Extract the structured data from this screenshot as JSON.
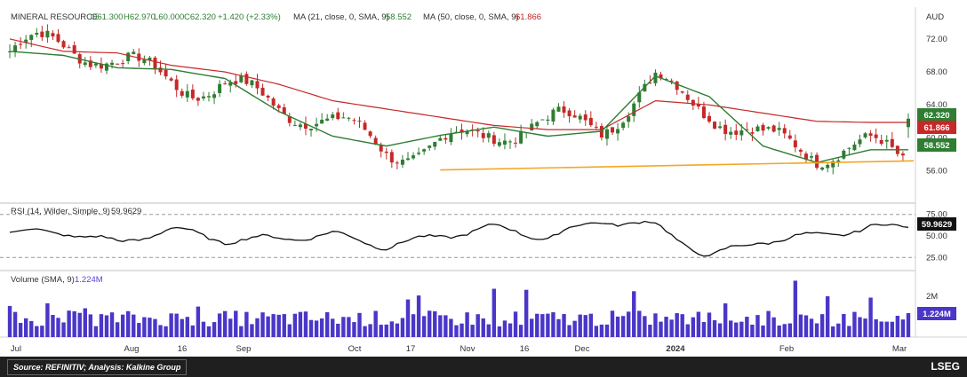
{
  "header": {
    "symbol": "MINERAL RESOURCE",
    "open": "O61.300",
    "high": "H62.970",
    "low": "L60.000",
    "close": "C62.320",
    "change": "+1.420 (+2.33%)",
    "ma21_label": "MA (21, close, 0, SMA, 9)",
    "ma21_value": "58.552",
    "ma50_label": "MA (50, close, 0, SMA, 9)",
    "ma50_value": "61.866",
    "currency": "AUD"
  },
  "badges": {
    "last_price": "62.320",
    "ma50": "61.866",
    "ma21": "58.552",
    "rsi": "59.9629",
    "volume": "1.224M"
  },
  "rsi": {
    "label": "RSI (14, Wilder, Simple, 9)",
    "value_label": "59.9629"
  },
  "volume": {
    "label": "Volume (SMA, 9)",
    "value_label": "1.224M"
  },
  "footer": {
    "source": "Source: REFINITIV; Analysis: Kalkine Group",
    "logo_text": "LSEG"
  },
  "colors": {
    "up": "#2e7d32",
    "down": "#c62828",
    "ma21": "#2e7d32",
    "ma50": "#c62828",
    "support": "#f5a623",
    "volume": "#4a36c8",
    "rsi": "#111111"
  },
  "chart_data": [
    {
      "type": "candlestick",
      "title": "MINERAL RESOURCE",
      "ylabel": "AUD",
      "ylim": [
        52.5,
        73.5
      ],
      "yticks": [
        56,
        60,
        64,
        68,
        72
      ],
      "xticks": [
        "Jul",
        "Aug",
        "16",
        "Sep",
        "Oct",
        "17",
        "Nov",
        "16",
        "Dec",
        "2024",
        "Feb",
        "Mar"
      ],
      "series": [
        {
          "name": "MA (21, close, 0, SMA, 9)",
          "x": [
            0,
            10,
            20,
            30,
            40,
            50,
            60,
            70,
            80,
            90,
            100,
            110,
            120,
            130,
            140,
            150,
            160
          ],
          "values": [
            70.5,
            70.0,
            68.5,
            68.3,
            67.2,
            63.2,
            60.2,
            59.0,
            60.3,
            61.3,
            60.2,
            60.8,
            67.5,
            65.0,
            59.0,
            57.0,
            58.552
          ]
        },
        {
          "name": "MA (50, close, 0, SMA, 9)",
          "x": [
            0,
            10,
            20,
            30,
            40,
            50,
            60,
            70,
            80,
            90,
            100,
            110,
            120,
            130,
            140,
            150,
            160
          ],
          "values": [
            72.0,
            70.5,
            70.3,
            68.8,
            68.0,
            66.5,
            64.5,
            63.5,
            62.5,
            61.5,
            61.0,
            61.0,
            64.5,
            64.0,
            63.0,
            62.0,
            61.866
          ]
        },
        {
          "name": "Support",
          "x": [
            80,
            168
          ],
          "values": [
            56.1,
            57.2
          ]
        }
      ],
      "last": {
        "open": 61.3,
        "high": 62.97,
        "low": 60.0,
        "close": 62.32
      }
    },
    {
      "type": "line",
      "title": "RSI (14, Wilder, Simple, 9)",
      "ylim": [
        15,
        85
      ],
      "yticks": [
        25,
        50,
        75
      ],
      "reference_lines": [
        25,
        75
      ],
      "x": [
        0,
        10,
        20,
        30,
        40,
        50,
        60,
        70,
        80,
        90,
        100,
        110,
        120,
        130,
        140,
        150,
        160
      ],
      "values": [
        54,
        55,
        42,
        58,
        45,
        47,
        52,
        38,
        50,
        60,
        48,
        68,
        62,
        26,
        45,
        50,
        59.9629
      ]
    },
    {
      "type": "bar",
      "title": "Volume (SMA, 9)",
      "yticks": [
        "2M"
      ],
      "note": "daily volume bars, latest 1.224M",
      "last_value": "1.224M"
    }
  ]
}
